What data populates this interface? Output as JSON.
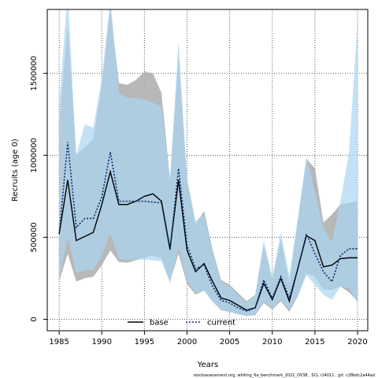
{
  "chart_data": {
    "type": "line",
    "title": "",
    "xlabel": "Years",
    "ylabel": "Recruits (age 0)",
    "xlim": [
      1983.6,
      2021.2
    ],
    "ylim": [
      -70000,
      1890000
    ],
    "xticks": [
      1985,
      1990,
      1995,
      2000,
      2005,
      2010,
      2015,
      2020
    ],
    "yticks": [
      0,
      500000,
      1000000,
      1500000
    ],
    "ytick_labels": [
      "0",
      "500000",
      "1000000",
      "1500000"
    ],
    "grid": true,
    "legend_position": "bottom-center",
    "x": [
      1985,
      1986,
      1987,
      1988,
      1989,
      1990,
      1991,
      1992,
      1993,
      1994,
      1995,
      1996,
      1997,
      1998,
      1999,
      2000,
      2001,
      2002,
      2003,
      2004,
      2005,
      2006,
      2007,
      2008,
      2009,
      2010,
      2011,
      2012,
      2013,
      2014,
      2015,
      2016,
      2017,
      2018,
      2019,
      2020
    ],
    "series": [
      {
        "name": "base",
        "color": "#000000",
        "style": "solid",
        "band_color": "#b0b0b0",
        "values": [
          520000,
          850000,
          480000,
          505000,
          530000,
          700000,
          900000,
          700000,
          700000,
          720000,
          750000,
          765000,
          720000,
          430000,
          850000,
          420000,
          290000,
          340000,
          230000,
          130000,
          115000,
          85000,
          55000,
          70000,
          220000,
          120000,
          250000,
          110000,
          310000,
          510000,
          480000,
          320000,
          330000,
          370000,
          375000,
          375000
        ],
        "lower": [
          230000,
          400000,
          230000,
          250000,
          260000,
          330000,
          420000,
          350000,
          345000,
          360000,
          375000,
          390000,
          370000,
          230000,
          400000,
          215000,
          150000,
          175000,
          110000,
          55000,
          45000,
          30000,
          20000,
          25000,
          100000,
          60000,
          110000,
          45000,
          140000,
          280000,
          260000,
          180000,
          180000,
          200000,
          165000,
          110000
        ],
        "upper": [
          1200000,
          1800000,
          1000000,
          1050000,
          1100000,
          1430000,
          1900000,
          1440000,
          1430000,
          1460000,
          1510000,
          1500000,
          1380000,
          850000,
          1600000,
          850000,
          580000,
          660000,
          420000,
          240000,
          210000,
          160000,
          110000,
          150000,
          450000,
          240000,
          490000,
          220000,
          600000,
          980000,
          920000,
          590000,
          640000,
          700000,
          710000,
          720000
        ]
      },
      {
        "name": "current",
        "color": "#0b2a6b",
        "style": "dotted",
        "band_color": "#a9d6f2",
        "values": [
          520000,
          1080000,
          560000,
          615000,
          615000,
          745000,
          1020000,
          720000,
          720000,
          720000,
          720000,
          715000,
          710000,
          420000,
          920000,
          450000,
          310000,
          330000,
          200000,
          115000,
          100000,
          70000,
          50000,
          70000,
          240000,
          130000,
          260000,
          130000,
          310000,
          520000,
          400000,
          290000,
          230000,
          390000,
          430000,
          430000
        ],
        "lower": [
          235000,
          500000,
          280000,
          300000,
          300000,
          390000,
          520000,
          370000,
          360000,
          365000,
          365000,
          360000,
          355000,
          220000,
          440000,
          235000,
          160000,
          175000,
          105000,
          55000,
          45000,
          30000,
          20000,
          30000,
          110000,
          65000,
          120000,
          60000,
          140000,
          270000,
          210000,
          150000,
          120000,
          200000,
          190000,
          100000
        ],
        "upper": [
          1320000,
          2000000,
          1000000,
          1190000,
          1170000,
          1470000,
          1960000,
          1380000,
          1350000,
          1350000,
          1340000,
          1320000,
          1300000,
          850000,
          1700000,
          860000,
          600000,
          640000,
          400000,
          230000,
          200000,
          150000,
          100000,
          150000,
          480000,
          260000,
          530000,
          270000,
          620000,
          990000,
          780000,
          560000,
          470000,
          720000,
          1020000,
          1820000
        ]
      }
    ],
    "footer": "stockassessment.org, whiting_6a_benchmark_2021_OV38 , SCL r14011 , git: c28bdc2a44ad"
  }
}
